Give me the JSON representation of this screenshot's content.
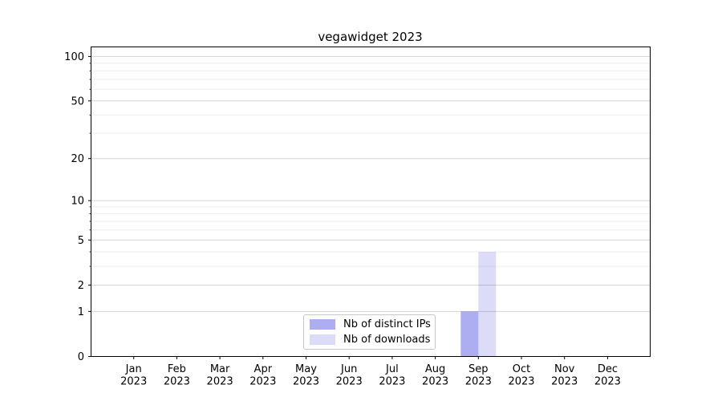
{
  "chart_data": {
    "type": "bar",
    "title": "vegawidget 2023",
    "categories": [
      "Jan 2023",
      "Feb 2023",
      "Mar 2023",
      "Apr 2023",
      "May 2023",
      "Jun 2023",
      "Jul 2023",
      "Aug 2023",
      "Sep 2023",
      "Oct 2023",
      "Nov 2023",
      "Dec 2023"
    ],
    "series": [
      {
        "name": "Nb of distinct IPs",
        "color": "rgba(20,20,215,0.35)",
        "values": [
          0,
          0,
          0,
          0,
          0,
          0,
          0,
          0,
          1,
          0,
          0,
          0
        ]
      },
      {
        "name": "Nb of downloads",
        "color": "rgba(20,20,215,0.15)",
        "values": [
          0,
          0,
          0,
          0,
          0,
          0,
          0,
          0,
          4,
          0,
          0,
          0
        ]
      }
    ],
    "xlabel": "",
    "ylabel": "",
    "yscale": "log1p",
    "ylim": [
      0,
      116
    ],
    "y_major_ticks": [
      0,
      1,
      2,
      5,
      10,
      20,
      50,
      100
    ],
    "y_minor_ticks": [
      3,
      4,
      6,
      7,
      8,
      9,
      30,
      40,
      60,
      70,
      80,
      90
    ],
    "grid": true,
    "legend_position": "lower-center"
  },
  "colors": {
    "background": "#ffffff",
    "spine": "#000000",
    "tick": "#000000",
    "text": "#000000",
    "grid_major": "#d4d4d4",
    "grid_minor": "#eeeeee",
    "legend_border": "#c9c9c9"
  }
}
